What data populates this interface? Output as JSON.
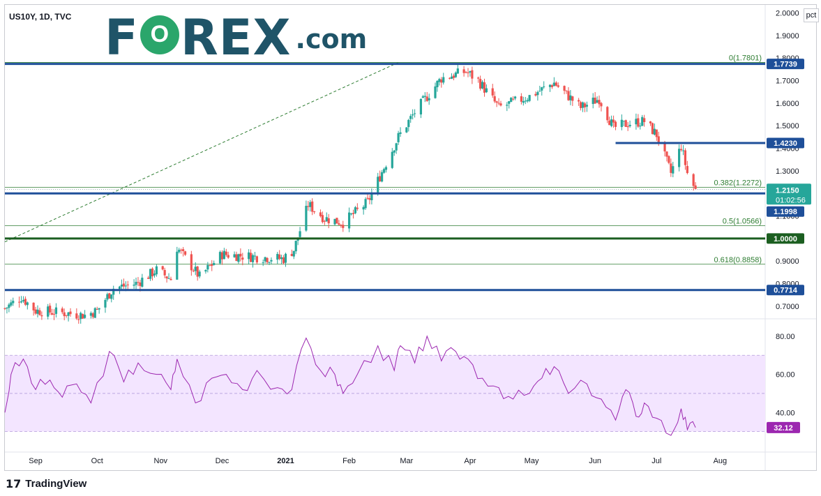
{
  "header": {
    "symbol": "US10Y, 1D, TVC",
    "logo_left": "F",
    "logo_o": "O",
    "logo_right": "REX",
    "logo_com": ".com",
    "pct_button": "pct"
  },
  "footer": {
    "brand_mark": "17",
    "brand": "TradingView"
  },
  "colors": {
    "up": "#26a69a",
    "down": "#ef5350",
    "level": "#1e4f99",
    "level_green": "#1b5e20",
    "fib": "#2e7d32",
    "rsi_line": "#9c27b0",
    "rsi_band": "#f3e5ff",
    "current_label": "#26a69a"
  },
  "chart_data": [
    {
      "type": "candlestick",
      "timeframe": "1D",
      "x": [
        "Sep",
        "Oct",
        "Nov",
        "Dec",
        "2021",
        "Feb",
        "Mar",
        "Apr",
        "May",
        "Jun",
        "Jul",
        "Aug"
      ],
      "y_ticks": [
        "0.7000",
        "0.8000",
        "0.9000",
        "1.0000",
        "1.1000",
        "1.2000",
        "1.3000",
        "1.4000",
        "1.5000",
        "1.6000",
        "1.7000",
        "1.8000",
        "1.9000",
        "2.0000"
      ],
      "ylim": [
        0.65,
        2.02
      ],
      "close_path": [
        [
          "2020-08-17",
          0.69
        ],
        [
          "2020-08-25",
          0.74
        ],
        [
          "2020-09-01",
          0.68
        ],
        [
          "2020-09-15",
          0.67
        ],
        [
          "2020-09-25",
          0.66
        ],
        [
          "2020-10-01",
          0.68
        ],
        [
          "2020-10-09",
          0.78
        ],
        [
          "2020-10-20",
          0.8
        ],
        [
          "2020-10-30",
          0.86
        ],
        [
          "2020-11-06",
          0.82
        ],
        [
          "2020-11-09",
          0.96
        ],
        [
          "2020-11-20",
          0.83
        ],
        [
          "2020-12-01",
          0.93
        ],
        [
          "2020-12-15",
          0.92
        ],
        [
          "2020-12-31",
          0.91
        ],
        [
          "2021-01-05",
          0.95
        ],
        [
          "2021-01-12",
          1.15
        ],
        [
          "2021-01-20",
          1.09
        ],
        [
          "2021-01-29",
          1.07
        ],
        [
          "2021-02-10",
          1.16
        ],
        [
          "2021-02-25",
          1.45
        ],
        [
          "2021-03-05",
          1.56
        ],
        [
          "2021-03-18",
          1.71
        ],
        [
          "2021-03-30",
          1.74
        ],
        [
          "2021-04-05",
          1.7
        ],
        [
          "2021-04-15",
          1.58
        ],
        [
          "2021-04-30",
          1.63
        ],
        [
          "2021-05-12",
          1.69
        ],
        [
          "2021-05-25",
          1.58
        ],
        [
          "2021-06-03",
          1.62
        ],
        [
          "2021-06-10",
          1.49
        ],
        [
          "2021-06-17",
          1.51
        ],
        [
          "2021-06-25",
          1.52
        ],
        [
          "2021-07-01",
          1.46
        ],
        [
          "2021-07-08",
          1.29
        ],
        [
          "2021-07-13",
          1.41
        ],
        [
          "2021-07-16",
          1.29
        ],
        [
          "2021-07-20",
          1.215
        ]
      ],
      "horizontal_levels": [
        1.7739,
        1.423,
        1.1998,
        1.0,
        0.7714
      ],
      "fibonacci": [
        {
          "label": "0(1.7801)",
          "value": 1.7801
        },
        {
          "label": "0.382(1.2272)",
          "value": 1.2272
        },
        {
          "label": "0.5(1.0566)",
          "value": 1.0566
        },
        {
          "label": "0.618(0.8858)",
          "value": 0.8858
        }
      ],
      "price_labels": [
        "1.7739",
        "1.4230",
        "1.2150",
        "01:02:56",
        "1.1998",
        "1.0000",
        "0.7714"
      ],
      "current_price": 1.215,
      "countdown": "01:02:56",
      "trendline": "dashed, rising from lower-left to the top-left of the 0(1.7801) level"
    },
    {
      "type": "line",
      "indicator": "RSI",
      "y_ticks": [
        "40.00",
        "60.00",
        "80.00"
      ],
      "ylim": [
        20,
        88
      ],
      "band": [
        30,
        70
      ],
      "midline": 50,
      "last_value": "32.12",
      "values": [
        [
          "2020-08-17",
          40
        ],
        [
          "2020-08-20",
          60
        ],
        [
          "2020-08-26",
          68
        ],
        [
          "2020-09-01",
          52
        ],
        [
          "2020-09-08",
          57
        ],
        [
          "2020-09-14",
          48
        ],
        [
          "2020-09-21",
          55
        ],
        [
          "2020-09-28",
          45
        ],
        [
          "2020-10-07",
          72
        ],
        [
          "2020-10-14",
          56
        ],
        [
          "2020-10-21",
          66
        ],
        [
          "2020-10-30",
          60
        ],
        [
          "2020-11-06",
          52
        ],
        [
          "2020-11-09",
          68
        ],
        [
          "2020-11-18",
          45
        ],
        [
          "2020-11-26",
          58
        ],
        [
          "2020-12-03",
          60
        ],
        [
          "2020-12-11",
          52
        ],
        [
          "2020-12-18",
          62
        ],
        [
          "2020-12-28",
          53
        ],
        [
          "2021-01-04",
          52
        ],
        [
          "2021-01-11",
          79
        ],
        [
          "2021-01-18",
          62
        ],
        [
          "2021-01-25",
          60
        ],
        [
          "2021-01-29",
          50
        ],
        [
          "2021-02-05",
          60
        ],
        [
          "2021-02-15",
          75
        ],
        [
          "2021-02-23",
          62
        ],
        [
          "2021-02-26",
          75
        ],
        [
          "2021-03-05",
          66
        ],
        [
          "2021-03-11",
          80
        ],
        [
          "2021-03-18",
          67
        ],
        [
          "2021-03-25",
          72
        ],
        [
          "2021-03-31",
          68
        ],
        [
          "2021-04-07",
          58
        ],
        [
          "2021-04-15",
          53
        ],
        [
          "2021-04-22",
          47
        ],
        [
          "2021-04-30",
          50
        ],
        [
          "2021-05-06",
          58
        ],
        [
          "2021-05-12",
          64
        ],
        [
          "2021-05-19",
          50
        ],
        [
          "2021-05-28",
          55
        ],
        [
          "2021-06-04",
          47
        ],
        [
          "2021-06-11",
          36
        ],
        [
          "2021-06-16",
          52
        ],
        [
          "2021-06-21",
          38
        ],
        [
          "2021-06-25",
          45
        ],
        [
          "2021-07-01",
          37
        ],
        [
          "2021-07-08",
          28
        ],
        [
          "2021-07-13",
          42
        ],
        [
          "2021-07-16",
          31
        ],
        [
          "2021-07-20",
          32.12
        ]
      ]
    }
  ]
}
